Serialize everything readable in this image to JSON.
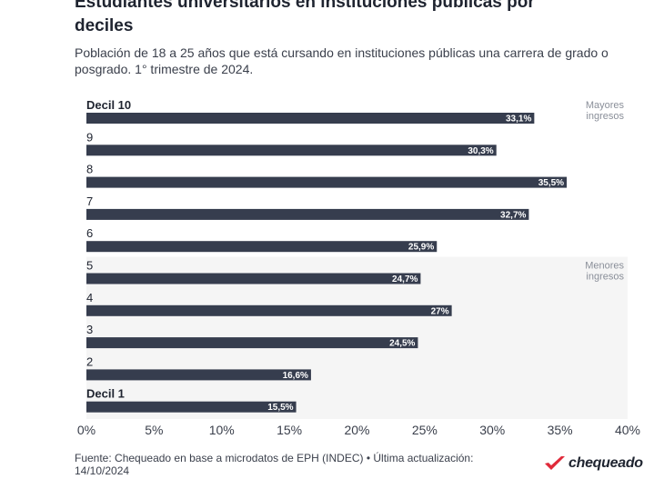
{
  "title_line1": "Estudiantes universitarios en instituciones públicas por",
  "title_line2": "deciles",
  "subtitle": "Población de 18 a 25 años que está cursando en instituciones públicas una carrera de grado o posgrado. 1° trimestre de 2024.",
  "footer": "Fuente: Chequeado en base a microdatos de EPH (INDEC) • Última actualización: 14/10/2024",
  "logo": "chequeado",
  "colors": {
    "bar": "#363d4e",
    "band": "#f5f5f5",
    "text": "#2b2f3a",
    "brand": "#e02a3a"
  },
  "chart_data": {
    "type": "bar",
    "orientation": "horizontal",
    "categories": [
      "Decil 10",
      "9",
      "8",
      "7",
      "6",
      "5",
      "4",
      "3",
      "2",
      "Decil 1"
    ],
    "values": [
      33.1,
      30.3,
      35.5,
      32.7,
      25.9,
      24.7,
      27,
      24.5,
      16.6,
      15.5
    ],
    "value_labels": [
      "33,1%",
      "30,3%",
      "35,5%",
      "32,7%",
      "25,9%",
      "24,7%",
      "27%",
      "24,5%",
      "16,6%",
      "15,5%"
    ],
    "xlim": [
      0,
      40
    ],
    "xticks": [
      0,
      5,
      10,
      15,
      20,
      25,
      30,
      35,
      40
    ],
    "xtick_labels": [
      "0%",
      "5%",
      "10%",
      "15%",
      "20%",
      "25%",
      "30%",
      "35%",
      "40%"
    ],
    "annotations": [
      {
        "text_line1": "Mayores",
        "text_line2": "ingresos",
        "group_start": 0
      },
      {
        "text_line1": "Menores",
        "text_line2": "ingresos",
        "group_start": 5
      }
    ],
    "shaded_group_start": 5
  }
}
